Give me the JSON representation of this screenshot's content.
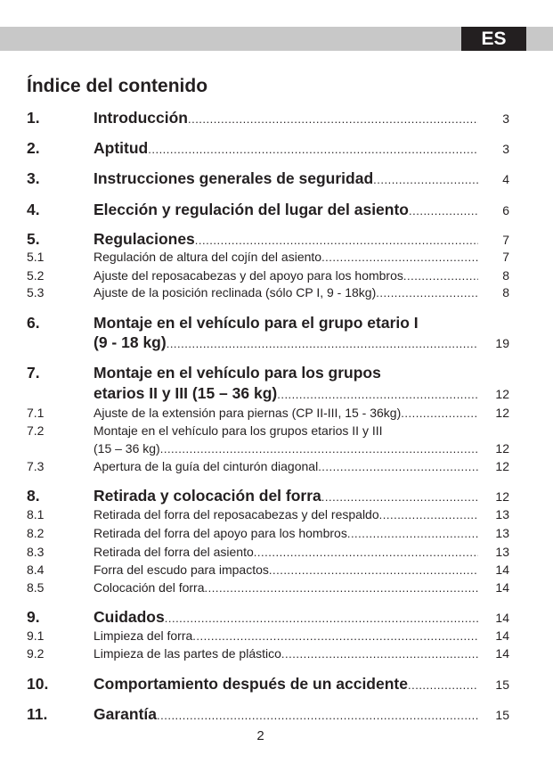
{
  "header": {
    "language_badge": "ES"
  },
  "title": "Índice del contenido",
  "entries": [
    {
      "num": "1.",
      "level": "major",
      "lines": [
        "Introducción"
      ],
      "page": "3"
    },
    {
      "num": "2.",
      "level": "major",
      "lines": [
        "Aptitud"
      ],
      "page": "3"
    },
    {
      "num": "3.",
      "level": "major",
      "lines": [
        "Instrucciones generales de seguridad"
      ],
      "page": "4"
    },
    {
      "num": "4.",
      "level": "major",
      "lines": [
        "Elección y regulación del lugar del asiento"
      ],
      "page": "6"
    },
    {
      "num": "5.",
      "level": "major",
      "lines": [
        "Regulaciones"
      ],
      "page": "7"
    },
    {
      "num": "5.1",
      "level": "minor",
      "lines": [
        "Regulación de altura del cojín del asiento"
      ],
      "page": "7"
    },
    {
      "num": "5.2",
      "level": "minor",
      "lines": [
        "Ajuste del reposacabezas y del apoyo para los hombros"
      ],
      "page": "8"
    },
    {
      "num": "5.3",
      "level": "minor",
      "lines": [
        "Ajuste de la posición reclinada (sólo CP I, 9 - 18kg)"
      ],
      "page": "8"
    },
    {
      "num": "6.",
      "level": "major",
      "lines": [
        "Montaje en el vehículo para el grupo etario I",
        "(9 - 18 kg)"
      ],
      "page": "19"
    },
    {
      "num": "7.",
      "level": "major",
      "lines": [
        "Montaje en el vehículo para los grupos",
        "etarios II y III (15 – 36 kg)"
      ],
      "page": "12"
    },
    {
      "num": "7.1",
      "level": "minor",
      "lines": [
        "Ajuste de la extensión para piernas (CP II-III, 15 - 36kg)"
      ],
      "page": "12"
    },
    {
      "num": "7.2",
      "level": "minor",
      "lines": [
        "Montaje en el vehículo para los grupos etarios II y III",
        "(15 – 36 kg)"
      ],
      "page": "12"
    },
    {
      "num": "7.3",
      "level": "minor",
      "lines": [
        "Apertura de la guía del cinturón diagonal"
      ],
      "page": "12"
    },
    {
      "num": "8.",
      "level": "major",
      "lines": [
        "Retirada y colocación del forra"
      ],
      "page": "12"
    },
    {
      "num": "8.1",
      "level": "minor",
      "lines": [
        "Retirada del forra del reposacabezas y del respaldo"
      ],
      "page": "13"
    },
    {
      "num": "8.2",
      "level": "minor",
      "lines": [
        "Retirada del forra del apoyo para los hombros"
      ],
      "page": "13"
    },
    {
      "num": "8.3",
      "level": "minor",
      "lines": [
        "Retirada del forra del asiento"
      ],
      "page": "13"
    },
    {
      "num": "8.4",
      "level": "minor",
      "lines": [
        "Forra del escudo para impactos"
      ],
      "page": "14"
    },
    {
      "num": "8.5",
      "level": "minor",
      "lines": [
        "Colocación del forra"
      ],
      "page": "14"
    },
    {
      "num": "9.",
      "level": "major",
      "lines": [
        "Cuidados"
      ],
      "page": "14"
    },
    {
      "num": "9.1",
      "level": "minor",
      "lines": [
        "Limpieza del forra"
      ],
      "page": "14"
    },
    {
      "num": "9.2",
      "level": "minor",
      "lines": [
        "Limpieza de las partes de plástico"
      ],
      "page": "14"
    },
    {
      "num": "10.",
      "level": "major",
      "lines": [
        "Comportamiento después de un accidente"
      ],
      "page": "15"
    },
    {
      "num": "11.",
      "level": "major",
      "lines": [
        "Garantía"
      ],
      "page": "15"
    }
  ],
  "footer": {
    "page_number": "2"
  }
}
